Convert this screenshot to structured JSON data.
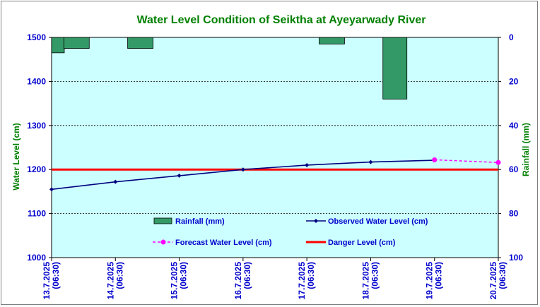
{
  "chart_data": {
    "type": "bar+line",
    "title": "Water Level Condition of Seiktha at Ayeyarwady River",
    "ylabel_left": "Water Level (cm)",
    "ylabel_right": "Rainfall (mm)",
    "ylim_left": [
      1000,
      1500
    ],
    "yticks_left": [
      "1000",
      "1100",
      "1200",
      "1300",
      "1400",
      "1500"
    ],
    "ylim_right_inverted": [
      0,
      100
    ],
    "yticks_right": [
      "0",
      "20",
      "40",
      "60",
      "80",
      "100"
    ],
    "categories": [
      [
        "13.7.2025",
        "(06:30)"
      ],
      [
        "14.7.2025",
        "(06:30)"
      ],
      [
        "15.7.2025",
        "(06:30)"
      ],
      [
        "16.7.2025",
        "(06:30)"
      ],
      [
        "17.7.2025",
        "(06:30)"
      ],
      [
        "18.7.2025",
        "(06:30)"
      ],
      [
        "19.7.2025",
        "(06:30)"
      ],
      [
        "20.7.2025",
        "(06:30)"
      ]
    ],
    "series": [
      {
        "name": "Rainfall (mm)",
        "kind": "bar",
        "axis": "right",
        "color": "#339966",
        "values": [
          7,
          5,
          5,
          0,
          0,
          3,
          28,
          null
        ]
      },
      {
        "name": "Observed Water Level (cm)",
        "kind": "line",
        "axis": "left",
        "color": "#000080",
        "values": [
          1155,
          1172,
          1186,
          1200,
          1210,
          1217,
          1221,
          null
        ]
      },
      {
        "name": "Forecast Water Level (cm)",
        "kind": "dashed-line",
        "axis": "left",
        "color": "#ff00ff",
        "values": [
          null,
          null,
          null,
          null,
          null,
          null,
          1222,
          1216
        ]
      },
      {
        "name": "Danger Level (cm)",
        "kind": "hline",
        "axis": "left",
        "color": "#ff0000",
        "value": 1200
      }
    ],
    "grid": "horizontal dashed",
    "plot_background": "#ccffff"
  }
}
